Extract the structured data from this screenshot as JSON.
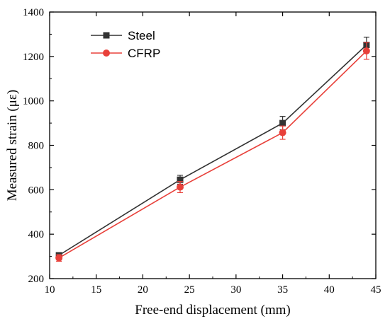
{
  "chart_data": {
    "type": "line",
    "xlabel": "Free-end displacement (mm)",
    "ylabel": "Measured strain (με)",
    "xlim": [
      10,
      45
    ],
    "ylim": [
      200,
      1400
    ],
    "xticks": [
      "10",
      "15",
      "20",
      "25",
      "30",
      "35",
      "40",
      "45"
    ],
    "yticks": [
      "200",
      "400",
      "600",
      "800",
      "1000",
      "1200",
      "1400"
    ],
    "legend_position": "top-left",
    "grid": false,
    "series": [
      {
        "name": "Steel",
        "color": "#333333",
        "marker": "square",
        "x": [
          11,
          24,
          35,
          44
        ],
        "y": [
          305,
          645,
          900,
          1252
        ],
        "err": [
          10,
          20,
          30,
          35
        ]
      },
      {
        "name": "CFRP",
        "color": "#e8403a",
        "marker": "circle",
        "x": [
          11,
          24,
          35,
          44
        ],
        "y": [
          293,
          612,
          857,
          1225
        ],
        "err": [
          15,
          25,
          30,
          38
        ]
      }
    ]
  }
}
